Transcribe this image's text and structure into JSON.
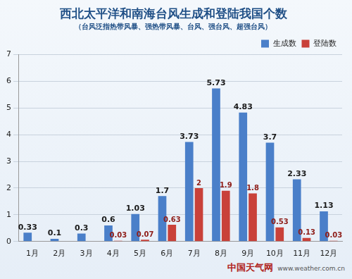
{
  "chart_data": {
    "type": "bar",
    "title": "西北太平洋和南海台风生成和登陆我国个数",
    "subtitle": "（台风泛指热带风暴、强热带风暴、台风、强台风、超强台风）",
    "categories": [
      "1月",
      "2月",
      "3月",
      "4月",
      "5月",
      "6月",
      "7月",
      "8月",
      "9月",
      "10月",
      "11月",
      "12月"
    ],
    "series": [
      {
        "name": "生成数",
        "color": "#4a7fc9",
        "values": [
          0.33,
          0.1,
          0.3,
          0.6,
          1.03,
          1.7,
          3.73,
          5.73,
          4.83,
          3.7,
          2.33,
          1.13
        ]
      },
      {
        "name": "登陆数",
        "color": "#c9413a",
        "values": [
          null,
          null,
          null,
          0.03,
          0.07,
          0.63,
          2,
          1.9,
          1.8,
          0.53,
          0.13,
          0.03
        ]
      }
    ],
    "ylim": [
      0,
      7
    ],
    "yticks": [
      0,
      1,
      2,
      3,
      4,
      5,
      6,
      7
    ],
    "grid": true,
    "legend": "upper right",
    "data_labels": true,
    "annotations": [
      "中国天气网",
      "www.weather.com.cn"
    ]
  }
}
